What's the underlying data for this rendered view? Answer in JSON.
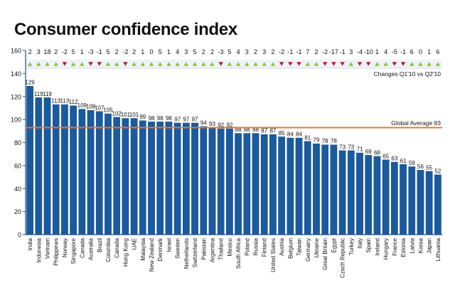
{
  "colors": {
    "bar": "#1a5a9e",
    "bar_stroke": "#0e3f75",
    "average_line": "#e07b39",
    "up": "#8fbf3a",
    "down": "#c0182a",
    "axis": "#1f4f86",
    "text": "#111111",
    "grid_band": "#d7e3ef"
  },
  "chart_data": {
    "type": "bar",
    "title": "Consumer confidence index",
    "categories": [
      "India",
      "Indonesia",
      "Vietnam",
      "Philippines",
      "Norway",
      "Singapore",
      "Canada",
      "Australia",
      "Brazil",
      "Colombia",
      "Canada",
      "Hong Kong",
      "UAE",
      "Malaysia",
      "New Zealand",
      "Denmark",
      "Israel",
      "Sweden",
      "Netherlands",
      "Switzerland",
      "Pakistan",
      "Argentina",
      "Thailand",
      "Mexico",
      "South Africa",
      "Poland",
      "Russia",
      "Finland",
      "United States",
      "Austria",
      "Belgium",
      "Taiwan",
      "Germany",
      "Ukraine",
      "Great Britain",
      "Egypt",
      "Czech Republic",
      "Turkey",
      "Italy",
      "Spain",
      "Ireland",
      "Hungary",
      "France",
      "Estonia",
      "Latvia",
      "Korea",
      "Japan",
      "Lithuania"
    ],
    "values": [
      129,
      119,
      119,
      113,
      113,
      112,
      109,
      108,
      107,
      105,
      102,
      101,
      101,
      99,
      98,
      98,
      98,
      97,
      97,
      97,
      94,
      93,
      92,
      92,
      88,
      88,
      88,
      87,
      87,
      85,
      84,
      84,
      81,
      79,
      78,
      78,
      73,
      73,
      71,
      69,
      68,
      65,
      63,
      61,
      59,
      56,
      55,
      52
    ],
    "changes": [
      2,
      3,
      18,
      2,
      -2,
      5,
      1,
      -3,
      -1,
      5,
      2,
      -2,
      2,
      1,
      0,
      5,
      1,
      4,
      3,
      5,
      2,
      2,
      -3,
      5,
      4,
      3,
      2,
      3,
      2,
      -2,
      -1,
      -1,
      7,
      2,
      -2,
      -17,
      -1,
      3,
      -4,
      -10,
      1,
      4,
      -5,
      -1,
      6,
      0,
      1,
      6
    ],
    "changes_label": "Changes Q1'10 vs Q2'10",
    "reference_line": {
      "value": 93,
      "label": "Global Average 93"
    },
    "yticks": [
      0,
      20,
      40,
      60,
      80,
      100,
      120,
      140,
      160
    ],
    "ylim": [
      0,
      160
    ],
    "xlabel": "",
    "ylabel": ""
  }
}
